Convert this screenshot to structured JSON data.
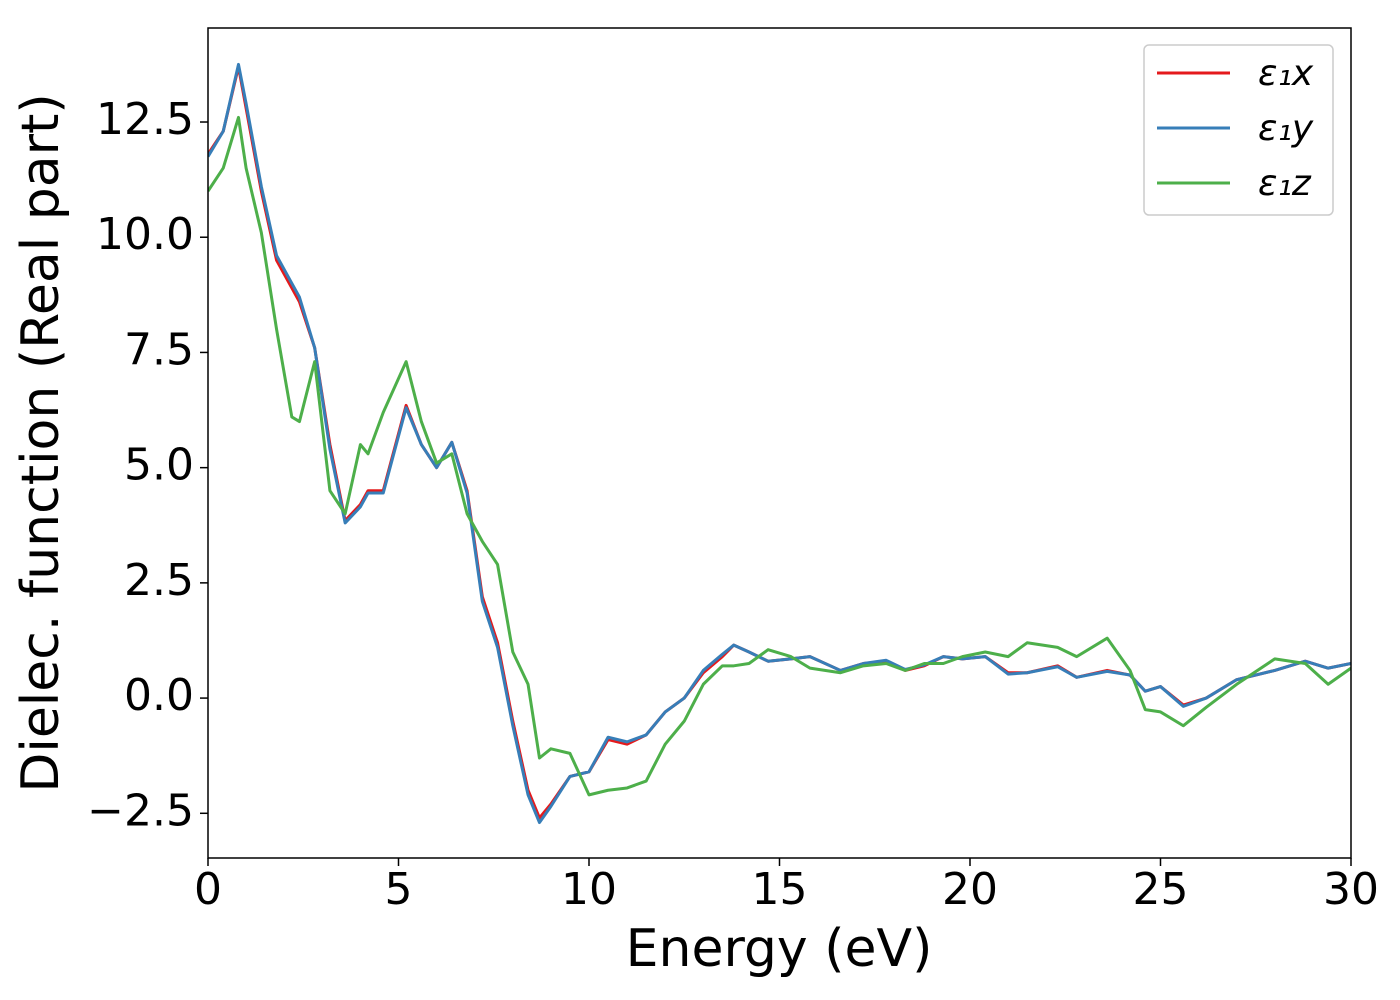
{
  "chart_data": {
    "type": "line",
    "xlabel": "Energy (eV)",
    "ylabel": "Dielec. function (Real part)",
    "x": [
      0,
      0.4,
      0.8,
      1.0,
      1.4,
      1.8,
      2.2,
      2.4,
      2.8,
      3.2,
      3.6,
      4.0,
      4.2,
      4.6,
      5.2,
      5.6,
      6.0,
      6.4,
      6.8,
      7.2,
      7.6,
      8.0,
      8.4,
      8.7,
      9.0,
      9.5,
      10.0,
      10.5,
      11.0,
      11.5,
      12.0,
      12.5,
      13.0,
      13.5,
      13.8,
      14.2,
      14.7,
      15.3,
      15.8,
      16.6,
      17.2,
      17.8,
      18.3,
      18.8,
      19.3,
      19.8,
      20.4,
      21.0,
      21.5,
      22.3,
      22.8,
      23.6,
      24.2,
      24.6,
      25.0,
      25.6,
      26.2,
      27.0,
      28.0,
      28.8,
      29.4,
      30.0
    ],
    "series": [
      {
        "name": "ε₁x",
        "color": "#e41a1c",
        "values": [
          11.8,
          12.3,
          13.7,
          12.8,
          11.0,
          9.5,
          8.9,
          8.6,
          7.6,
          5.5,
          3.85,
          4.2,
          4.5,
          4.5,
          6.35,
          5.5,
          5.0,
          5.55,
          4.5,
          2.2,
          1.2,
          -0.5,
          -2.0,
          -2.6,
          -2.3,
          -1.7,
          -1.6,
          -0.9,
          -1.0,
          -0.8,
          -0.3,
          0.0,
          0.55,
          0.9,
          1.15,
          1.0,
          0.8,
          0.85,
          0.9,
          0.6,
          0.75,
          0.8,
          0.6,
          0.7,
          0.9,
          0.85,
          0.9,
          0.55,
          0.55,
          0.7,
          0.45,
          0.6,
          0.5,
          0.15,
          0.25,
          -0.15,
          0.0,
          0.4,
          0.6,
          0.8,
          0.65,
          0.75
        ]
      },
      {
        "name": "ε₁y",
        "color": "#377eb8",
        "values": [
          11.75,
          12.3,
          13.75,
          12.9,
          11.1,
          9.6,
          9.0,
          8.7,
          7.6,
          5.4,
          3.8,
          4.15,
          4.45,
          4.45,
          6.3,
          5.5,
          5.0,
          5.55,
          4.45,
          2.1,
          1.1,
          -0.6,
          -2.1,
          -2.7,
          -2.35,
          -1.7,
          -1.6,
          -0.85,
          -0.95,
          -0.8,
          -0.3,
          0.0,
          0.6,
          0.95,
          1.15,
          1.0,
          0.8,
          0.85,
          0.9,
          0.6,
          0.75,
          0.82,
          0.62,
          0.72,
          0.9,
          0.85,
          0.9,
          0.52,
          0.55,
          0.68,
          0.45,
          0.58,
          0.5,
          0.15,
          0.25,
          -0.18,
          0.0,
          0.4,
          0.6,
          0.8,
          0.65,
          0.75
        ]
      },
      {
        "name": "ε₁z",
        "color": "#4daf4a",
        "values": [
          11.0,
          11.5,
          12.6,
          11.5,
          10.1,
          8.0,
          6.1,
          6.0,
          7.3,
          4.5,
          4.0,
          5.5,
          5.3,
          6.2,
          7.3,
          6.0,
          5.1,
          5.3,
          4.0,
          3.4,
          2.9,
          1.0,
          0.3,
          -1.3,
          -1.1,
          -1.2,
          -2.1,
          -2.0,
          -1.95,
          -1.8,
          -1.0,
          -0.5,
          0.3,
          0.7,
          0.7,
          0.75,
          1.05,
          0.9,
          0.65,
          0.55,
          0.7,
          0.75,
          0.6,
          0.75,
          0.75,
          0.9,
          1.0,
          0.9,
          1.2,
          1.1,
          0.9,
          1.3,
          0.6,
          -0.25,
          -0.3,
          -0.6,
          -0.2,
          0.3,
          0.85,
          0.75,
          0.3,
          0.65
        ]
      }
    ],
    "xlim": [
      0,
      30
    ],
    "xticks": [
      0,
      5,
      10,
      15,
      20,
      25,
      30
    ],
    "ylim": [
      -3.47,
      14.54
    ],
    "yticks": [
      {
        "value": -2.5,
        "label": "−2.5"
      },
      {
        "value": 0,
        "label": "0.0"
      },
      {
        "value": 2.5,
        "label": "2.5"
      },
      {
        "value": 5,
        "label": "5.0"
      },
      {
        "value": 7.5,
        "label": "7.5"
      },
      {
        "value": 10,
        "label": "10.0"
      },
      {
        "value": 12.5,
        "label": "12.5"
      }
    ],
    "legend": "upper right",
    "grid": false
  }
}
